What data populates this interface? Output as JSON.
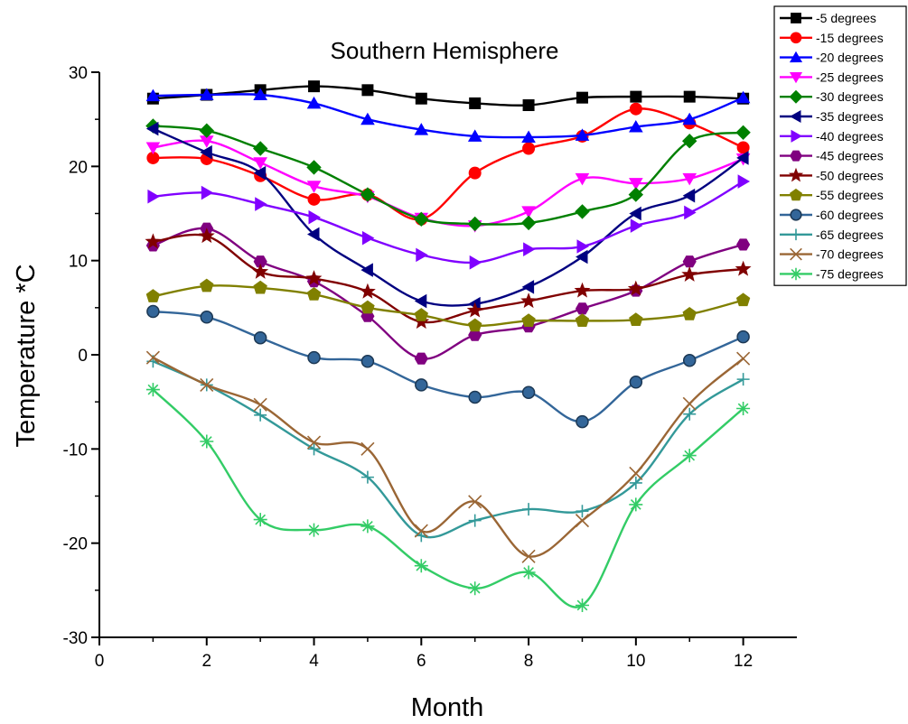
{
  "chart_data": {
    "type": "line",
    "title": "Southern Hemisphere",
    "xlabel": "Month",
    "ylabel": "Temperature *C",
    "xlim": [
      0,
      13
    ],
    "ylim": [
      -30,
      30
    ],
    "xticks": [
      "0",
      "2",
      "4",
      "6",
      "8",
      "10",
      "12"
    ],
    "yticks": [
      "-30",
      "-20",
      "-10",
      "0",
      "10",
      "20",
      "30"
    ],
    "grid": false,
    "legend_position": "top-right",
    "x": [
      1,
      2,
      3,
      4,
      5,
      6,
      7,
      8,
      9,
      10,
      11,
      12
    ],
    "series": [
      {
        "name": "-5 degrees",
        "color": "#000000",
        "marker": "square",
        "values": [
          27.2,
          27.6,
          28.1,
          28.5,
          28.1,
          27.2,
          26.7,
          26.5,
          27.3,
          27.4,
          27.4,
          27.2
        ]
      },
      {
        "name": "-15 degrees",
        "color": "#ff0000",
        "marker": "circle",
        "values": [
          20.9,
          20.8,
          19.0,
          16.5,
          17.0,
          14.4,
          19.3,
          21.9,
          23.2,
          26.1,
          24.6,
          22.0
        ]
      },
      {
        "name": "-20 degrees",
        "color": "#0000ff",
        "marker": "triangle-up",
        "values": [
          27.5,
          27.6,
          27.6,
          26.7,
          25.0,
          23.9,
          23.2,
          23.1,
          23.3,
          24.2,
          25.0,
          27.3
        ]
      },
      {
        "name": "-25 degrees",
        "color": "#ff00ff",
        "marker": "triangle-down",
        "values": [
          22.0,
          22.7,
          20.4,
          17.9,
          16.8,
          14.5,
          13.7,
          15.2,
          18.7,
          18.2,
          18.7,
          20.8
        ]
      },
      {
        "name": "-30 degrees",
        "color": "#008000",
        "marker": "diamond",
        "values": [
          24.3,
          23.8,
          21.9,
          19.9,
          17.0,
          14.4,
          13.9,
          14.0,
          15.2,
          17.0,
          22.7,
          23.6
        ]
      },
      {
        "name": "-35 degrees",
        "color": "#000080",
        "marker": "triangle-left",
        "values": [
          24.0,
          21.5,
          19.3,
          12.8,
          9.0,
          5.7,
          5.4,
          7.2,
          10.4,
          15.0,
          16.9,
          20.9
        ]
      },
      {
        "name": "-40 degrees",
        "color": "#8000ff",
        "marker": "triangle-right",
        "values": [
          16.8,
          17.2,
          16.0,
          14.6,
          12.4,
          10.6,
          9.8,
          11.2,
          11.5,
          13.7,
          15.1,
          18.4
        ]
      },
      {
        "name": "-45 degrees",
        "color": "#800080",
        "marker": "hexagon",
        "values": [
          11.6,
          13.4,
          9.9,
          7.8,
          4.1,
          -0.4,
          2.1,
          3.0,
          4.9,
          6.8,
          9.9,
          11.7
        ]
      },
      {
        "name": "-50 degrees",
        "color": "#800000",
        "marker": "star",
        "values": [
          12.0,
          12.6,
          8.8,
          8.1,
          6.7,
          3.5,
          4.7,
          5.7,
          6.8,
          7.0,
          8.5,
          9.1
        ]
      },
      {
        "name": "-55 degrees",
        "color": "#808000",
        "marker": "pentagon",
        "values": [
          6.2,
          7.3,
          7.1,
          6.4,
          5.0,
          4.2,
          3.1,
          3.6,
          3.6,
          3.7,
          4.3,
          5.8
        ]
      },
      {
        "name": "-60 degrees",
        "color": "#336699",
        "marker": "sphere",
        "values": [
          4.6,
          4.0,
          1.8,
          -0.3,
          -0.7,
          -3.2,
          -4.5,
          -4.0,
          -7.1,
          -2.9,
          -0.6,
          1.9
        ]
      },
      {
        "name": "-65 degrees",
        "color": "#339999",
        "marker": "plus",
        "values": [
          -0.7,
          -3.2,
          -6.4,
          -10.0,
          -13.0,
          -19.2,
          -17.6,
          -16.4,
          -16.6,
          -13.6,
          -6.3,
          -2.6
        ]
      },
      {
        "name": "-70 degrees",
        "color": "#9a6635",
        "marker": "cross",
        "values": [
          -0.3,
          -3.2,
          -5.3,
          -9.3,
          -10.0,
          -18.7,
          -15.6,
          -21.4,
          -17.6,
          -12.6,
          -5.2,
          -0.4
        ]
      },
      {
        "name": "-75 degrees",
        "color": "#33cc66",
        "marker": "asterisk",
        "values": [
          -3.7,
          -9.2,
          -17.5,
          -18.6,
          -18.2,
          -22.4,
          -24.8,
          -23.1,
          -26.6,
          -15.9,
          -10.7,
          -5.7
        ]
      }
    ]
  }
}
